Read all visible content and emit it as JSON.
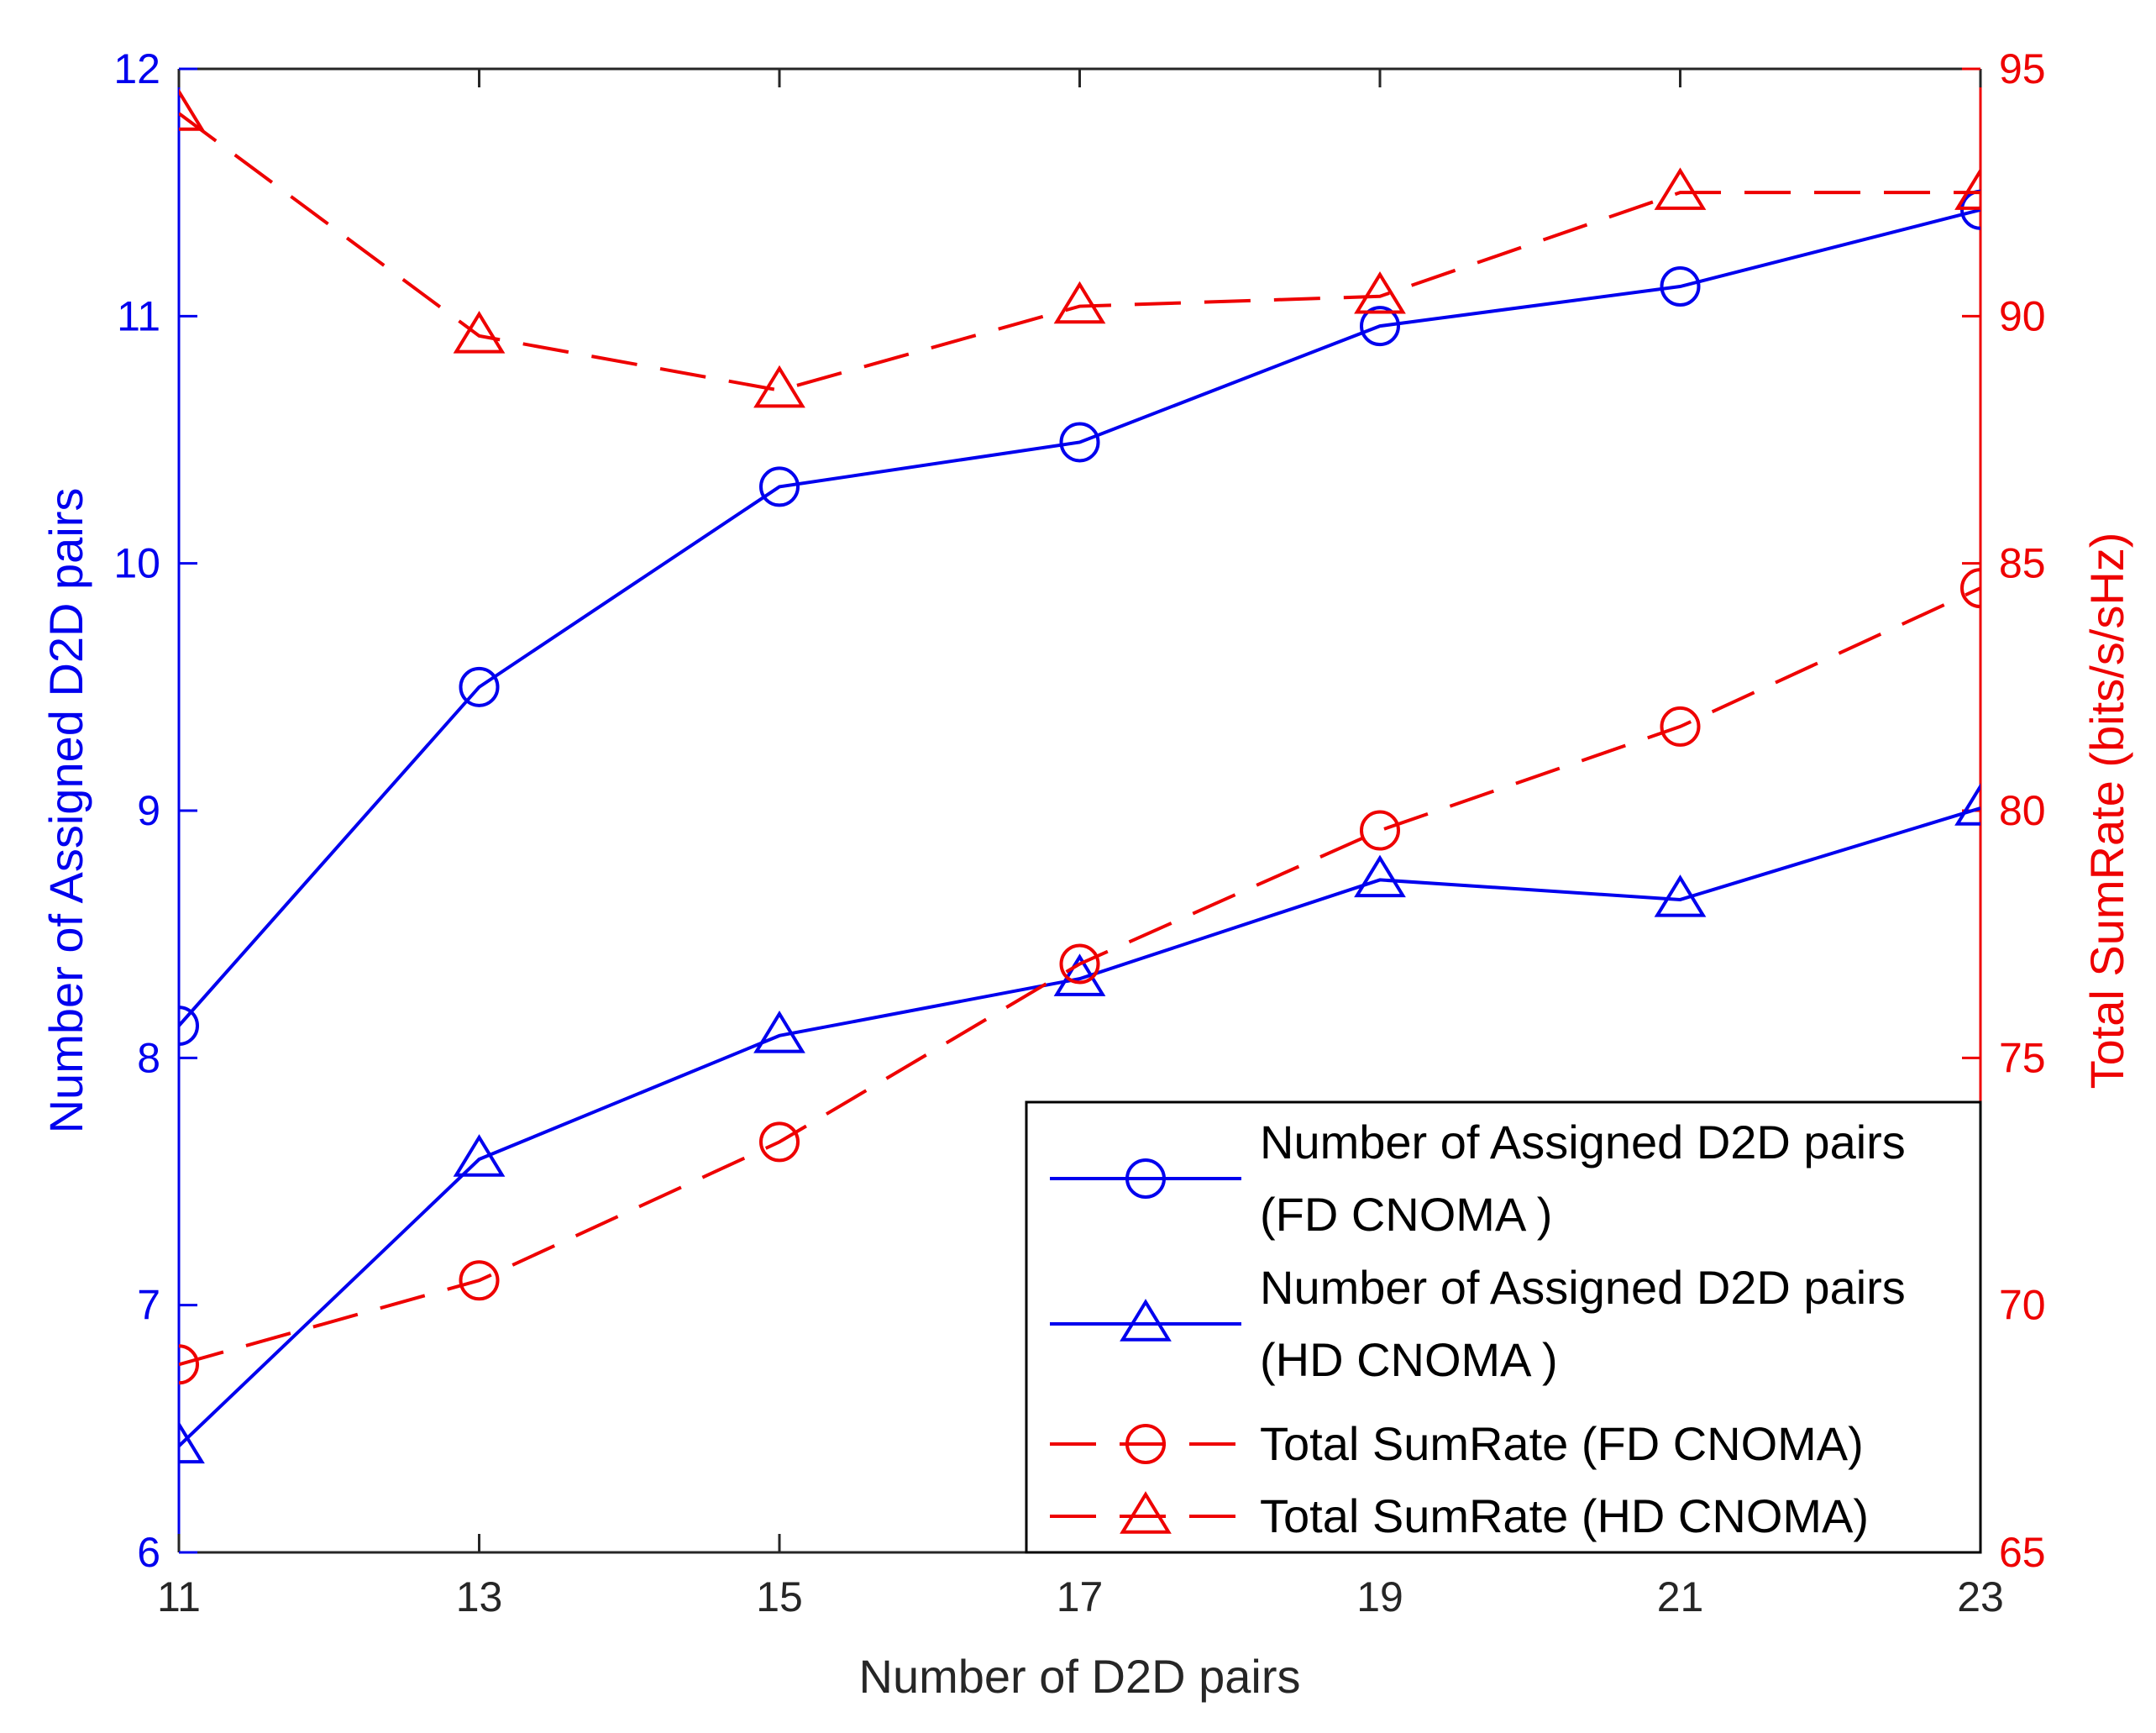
{
  "chart_data": {
    "type": "line",
    "xlabel": "Number of D2D pairs",
    "ylabel_left": "Number of Assigned D2D pairs",
    "ylabel_right": "Total SumRate (bits/s/sHz)",
    "x": [
      11,
      13,
      15,
      17,
      19,
      21,
      23
    ],
    "xlim": [
      11,
      23
    ],
    "xticks": [
      "11",
      "13",
      "15",
      "17",
      "19",
      "21",
      "23"
    ],
    "ylim_left": [
      6,
      12
    ],
    "yticks_left": [
      "6",
      "7",
      "8",
      "9",
      "10",
      "11",
      "12"
    ],
    "ylim_right": [
      65,
      95
    ],
    "yticks_right": [
      "65",
      "70",
      "75",
      "80",
      "85",
      "90",
      "95"
    ],
    "grid": false,
    "legend_position": "bottom-right",
    "series": [
      {
        "name": "Number of Assigned D2D pairs (FD CNOMA )",
        "legend_lines": [
          "Number of Assigned D2D pairs",
          "(FD CNOMA )"
        ],
        "axis": "left",
        "color": "#0000ee",
        "line_style": "solid",
        "marker": "circle",
        "values": [
          8.13,
          9.5,
          10.31,
          10.49,
          10.96,
          11.12,
          11.43
        ]
      },
      {
        "name": "Number of Assigned D2D pairs (HD CNOMA )",
        "legend_lines": [
          "Number of Assigned D2D pairs",
          "(HD CNOMA )"
        ],
        "axis": "left",
        "color": "#0000ee",
        "line_style": "solid",
        "marker": "triangle",
        "values": [
          6.43,
          7.59,
          8.09,
          8.32,
          8.72,
          8.64,
          9.01
        ]
      },
      {
        "name": "Total SumRate (FD CNOMA)",
        "legend_lines": [
          "Total SumRate (FD CNOMA)"
        ],
        "axis": "right",
        "color": "#ee0000",
        "line_style": "dashed",
        "marker": "circle",
        "values": [
          68.8,
          70.5,
          73.3,
          76.9,
          79.6,
          81.7,
          84.5
        ]
      },
      {
        "name": "Total SumRate (HD CNOMA)",
        "legend_lines": [
          "Total SumRate (HD CNOMA)"
        ],
        "axis": "right",
        "color": "#ee0000",
        "line_style": "dashed",
        "marker": "triangle",
        "values": [
          94.1,
          89.6,
          88.5,
          90.2,
          90.4,
          92.5,
          92.5
        ]
      }
    ]
  },
  "colors": {
    "left_axis": "#0000ee",
    "right_axis": "#ee0000",
    "frame": "#262626",
    "legend_border": "#000000"
  }
}
